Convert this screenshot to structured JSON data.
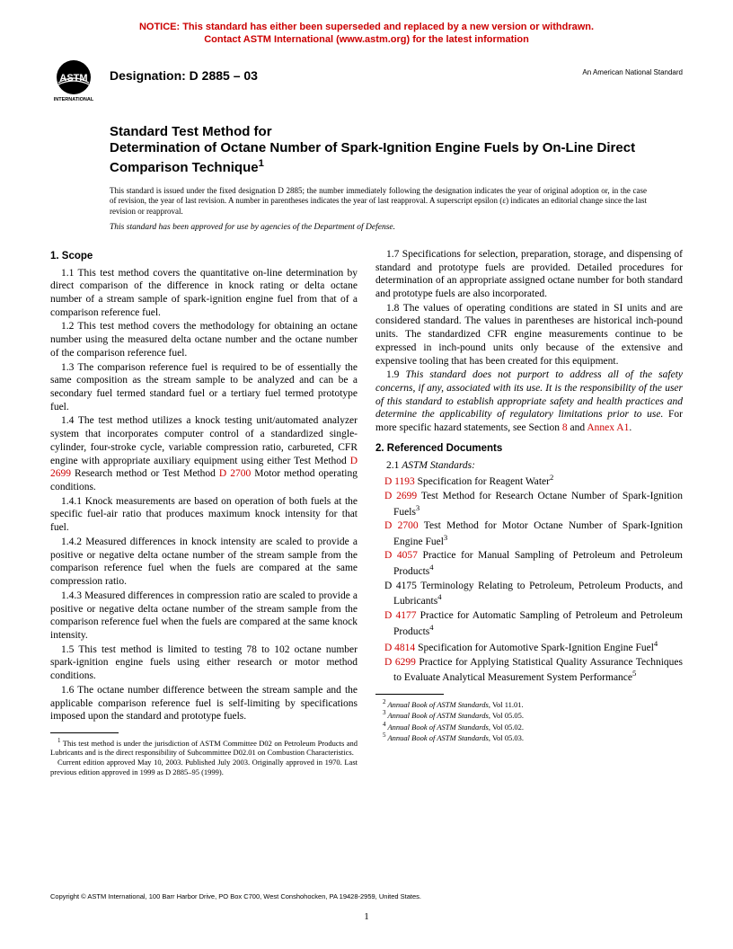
{
  "notice": {
    "line1": "NOTICE: This standard has either been superseded and replaced by a new version or withdrawn.",
    "line2": "Contact ASTM International (www.astm.org) for the latest information",
    "color": "#cc0000"
  },
  "header": {
    "designation_label": "Designation: D 2885 – 03",
    "ans": "An American National Standard",
    "logo_bg": "#000000",
    "logo_text": "ASTM",
    "logo_sub": "INTERNATIONAL"
  },
  "title": {
    "line1": "Standard Test Method for",
    "line2": "Determination of Octane Number of Spark-Ignition Engine Fuels by On-Line Direct Comparison Technique",
    "sup": "1"
  },
  "issuance": "This standard is issued under the fixed designation D 2885; the number immediately following the designation indicates the year of original adoption or, in the case of revision, the year of last revision. A number in parentheses indicates the year of last reapproval. A superscript epsilon (ε) indicates an editorial change since the last revision or reapproval.",
  "dod": "This standard has been approved for use by agencies of the Department of Defense.",
  "col_left": {
    "h1": "1. Scope",
    "p1_1": "1.1 This test method covers the quantitative on-line determination by direct comparison of the difference in knock rating or delta octane number of a stream sample of spark-ignition engine fuel from that of a comparison reference fuel.",
    "p1_2": "1.2 This test method covers the methodology for obtaining an octane number using the measured delta octane number and the octane number of the comparison reference fuel.",
    "p1_3": "1.3 The comparison reference fuel is required to be of essentially the same composition as the stream sample to be analyzed and can be a secondary fuel termed standard fuel or a tertiary fuel termed prototype fuel.",
    "p1_4a": "1.4 The test method utilizes a knock testing unit/automated analyzer system that incorporates computer control of a standardized single-cylinder, four-stroke cycle, variable compression ratio, carbureted, CFR engine with appropriate auxiliary equipment using either Test Method ",
    "p1_4_ref1": "D 2699",
    "p1_4b": " Research method or Test Method ",
    "p1_4_ref2": "D 2700",
    "p1_4c": " Motor method operating conditions.",
    "p1_4_1": "1.4.1 Knock measurements are based on operation of both fuels at the specific fuel-air ratio that produces maximum knock intensity for that fuel.",
    "p1_4_2": "1.4.2 Measured differences in knock intensity are scaled to provide a positive or negative delta octane number of the stream sample from the comparison reference fuel when the fuels are compared at the same compression ratio.",
    "p1_4_3": "1.4.3 Measured differences in compression ratio are scaled to provide a positive or negative delta octane number of the stream sample from the comparison reference fuel when the fuels are compared at the same knock intensity.",
    "p1_5": "1.5 This test method is limited to testing 78 to 102 octane number spark-ignition engine fuels using either research or motor method conditions.",
    "p1_6": "1.6 The octane number difference between the stream sample and the applicable comparison reference fuel is self-limiting by specifications imposed upon the standard and prototype fuels.",
    "fn1_a": " This test method is under the jurisdiction of ASTM Committee D02 on Petroleum Products and Lubricants and is the direct responsibility of Subcommittee D02.01 on Combustion Characteristics.",
    "fn1_b": "Current edition approved May 10, 2003. Published July 2003. Originally approved in 1970. Last previous edition approved in 1999 as D 2885–95 (1999)."
  },
  "col_right": {
    "p1_7": "1.7 Specifications for selection, preparation, storage, and dispensing of standard and prototype fuels are provided. Detailed procedures for determination of an appropriate assigned octane number for both standard and prototype fuels are also incorporated.",
    "p1_8": "1.8 The values of operating conditions are stated in SI units and are considered standard. The values in parentheses are historical inch-pound units. The standardized CFR engine measurements continue to be expressed in inch-pound units only because of the extensive and expensive tooling that has been created for this equipment.",
    "p1_9a": "1.9 ",
    "p1_9b": "This standard does not purport to address all of the safety concerns, if any, associated with its use. It is the responsibility of the user of this standard to establish appropriate safety and health practices and determine the applicability of regulatory limitations prior to use.",
    "p1_9c": " For more specific hazard statements, see Section ",
    "p1_9_ref1": "8",
    "p1_9d": " and ",
    "p1_9_ref2": "Annex A1",
    "p1_9e": ".",
    "h2": "2. Referenced Documents",
    "p2_1": "2.1 ",
    "p2_1_em": "ASTM Standards:",
    "docs": [
      {
        "ref": "D 1193",
        "txt": "  Specification for Reagent Water",
        "sup": "2"
      },
      {
        "ref": "D 2699",
        "txt": " Test Method for Research Octane Number of Spark-Ignition Fuels",
        "sup": "3"
      },
      {
        "ref": "D 2700",
        "txt": " Test Method for Motor Octane Number of Spark-Ignition Engine Fuel",
        "sup": "3"
      },
      {
        "ref": "D 4057",
        "txt": " Practice for Manual Sampling of Petroleum and Petroleum Products",
        "sup": "4"
      },
      {
        "ref": "",
        "plain": "D 4175",
        "txt": " Terminology Relating to Petroleum, Petroleum Products, and Lubricants",
        "sup": "4"
      },
      {
        "ref": "D 4177",
        "txt": " Practice for Automatic Sampling of Petroleum and Petroleum Products",
        "sup": "4"
      },
      {
        "ref": "D 4814",
        "txt": " Specification for Automotive Spark-Ignition Engine Fuel",
        "sup": "4"
      },
      {
        "ref": "D 6299",
        "txt": " Practice for Applying Statistical Quality Assurance Techniques to Evaluate Analytical Measurement System Performance",
        "sup": "5"
      }
    ],
    "fn2": " Annual Book of ASTM Standards",
    "fn2_vol": ", Vol 11.01.",
    "fn3_vol": ", Vol 05.05.",
    "fn4_vol": ", Vol 05.02.",
    "fn5_vol": ", Vol 05.03."
  },
  "copyright": "Copyright © ASTM International, 100 Barr Harbor Drive, PO Box C700, West Conshohocken, PA 19428-2959, United States.",
  "pagenum": "1",
  "colors": {
    "red": "#cc0000",
    "black": "#000000"
  }
}
